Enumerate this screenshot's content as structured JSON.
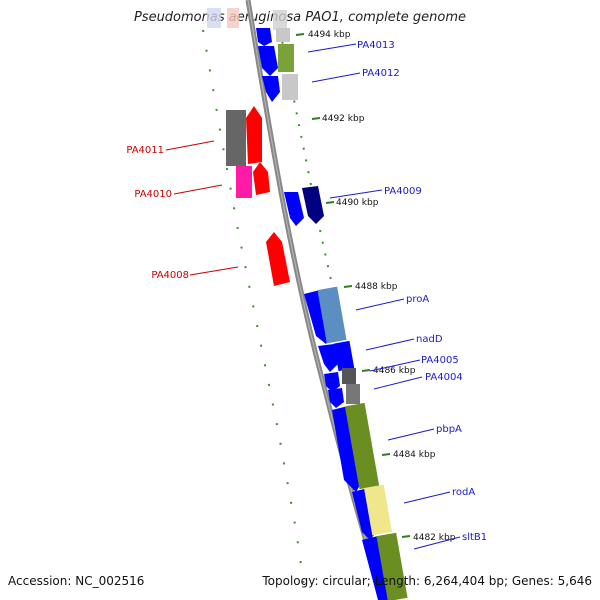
{
  "title": "Pseudomonas aeruginosa PAO1, complete genome",
  "footer": {
    "accession": "Accession: NC_002516",
    "info": "Topology: circular; Length: 6,264,404 bp; Genes: 5,646"
  },
  "colors": {
    "forward_gene": "#0000ff",
    "reverse_gene": "#ff0000",
    "forward_label": "#1a1acc",
    "reverse_label": "#cc0000",
    "tick": "#2e7d1e",
    "backbone": "#888888"
  },
  "ticks": [
    "4494 kbp",
    "4492 kbp",
    "4490 kbp",
    "4488 kbp",
    "4486 kbp",
    "4484 kbp",
    "4482 kbp"
  ],
  "genes_forward": [
    "PA4013",
    "PA4012",
    "PA4009",
    "proA",
    "nadD",
    "PA4005",
    "PA4004",
    "pbpA",
    "rodA",
    "sltB1"
  ],
  "genes_reverse": [
    "PA4011",
    "PA4010",
    "PA4008"
  ]
}
